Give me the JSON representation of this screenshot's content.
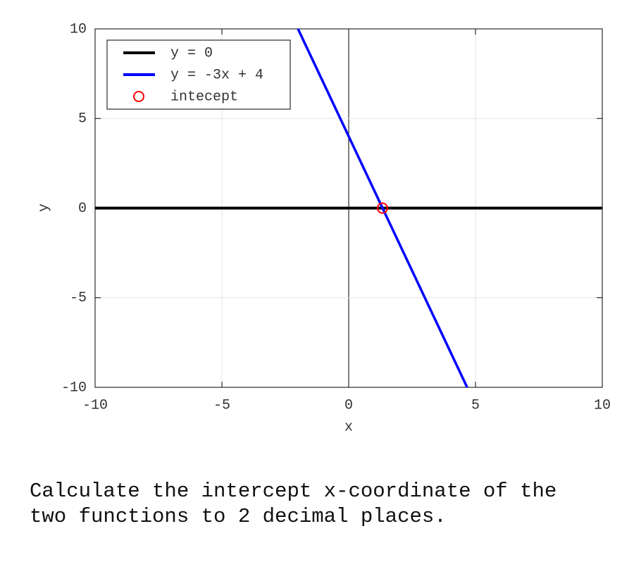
{
  "chart_data": {
    "type": "line",
    "x_label": "x",
    "y_label": "y",
    "xlim": [
      -10,
      10
    ],
    "ylim": [
      -10,
      10
    ],
    "xticks": [
      -10,
      -5,
      0,
      5,
      10
    ],
    "yticks": [
      -10,
      -5,
      0,
      5,
      10
    ],
    "grid": true,
    "legend": "upper-left",
    "series": [
      {
        "name": "y = 0",
        "color": "#000000",
        "x": [
          -10,
          10
        ],
        "values": [
          0,
          0
        ]
      },
      {
        "name": "y = -3x + 4",
        "color": "#0000ff",
        "x": [
          -2,
          4.67
        ],
        "values": [
          10,
          -10
        ]
      },
      {
        "name": "intecept",
        "color": "#ff0000",
        "marker": "circle",
        "x": [
          1.33
        ],
        "values": [
          0
        ]
      }
    ]
  },
  "question": "Calculate the intercept x-coordinate of the two functions to 2 decimal places."
}
